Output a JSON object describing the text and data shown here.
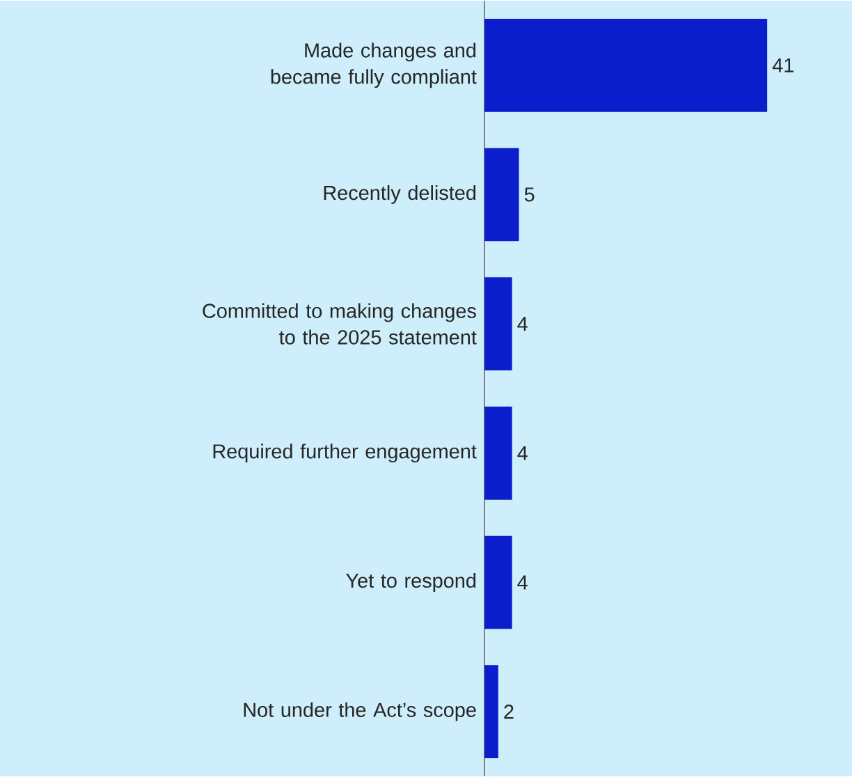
{
  "chart_data": {
    "type": "bar",
    "orientation": "horizontal",
    "categories": [
      "Made changes and became fully compliant",
      "Recently delisted",
      "Committed to making changes to the 2025 statement",
      "Required further engagement",
      "Yet to respond",
      "Not under the Act’s scope"
    ],
    "values": [
      41,
      5,
      4,
      4,
      4,
      2
    ],
    "color": "#0a1ecb",
    "data_labels": true
  }
}
